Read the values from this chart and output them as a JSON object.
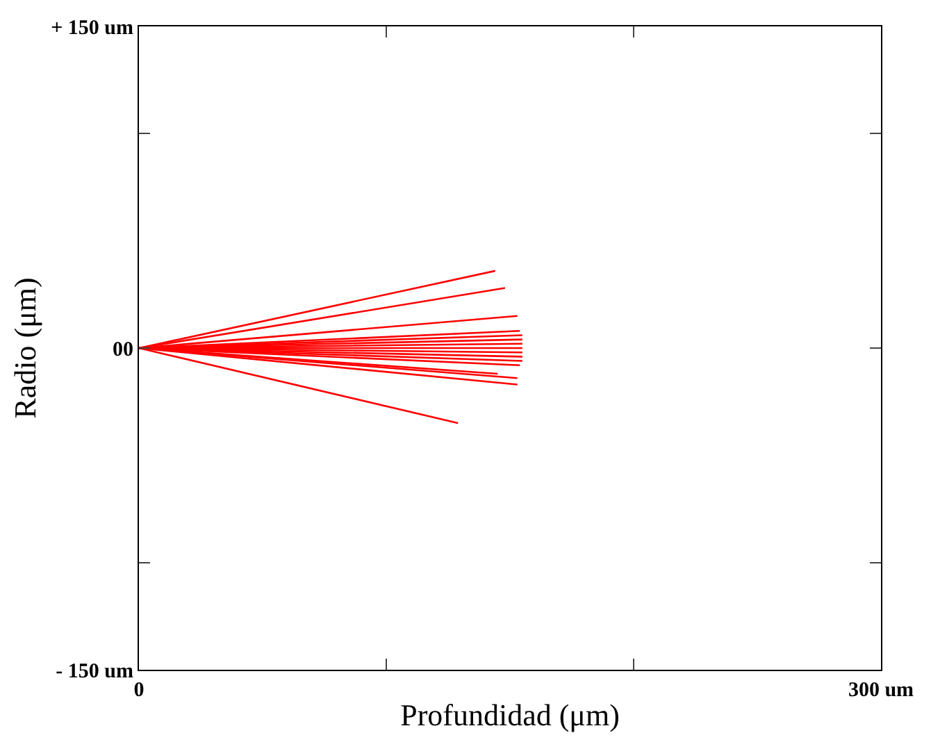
{
  "chart_data": {
    "type": "line",
    "xlabel": "Profundidad (μm)",
    "ylabel": "Radio (μm)",
    "xlim": [
      0,
      300
    ],
    "ylim": [
      -150,
      150
    ],
    "xticks": [
      {
        "value": 0,
        "label": "0"
      },
      {
        "value": 100,
        "label": null
      },
      {
        "value": 200,
        "label": null
      },
      {
        "value": 300,
        "label": "300 um"
      }
    ],
    "yticks": [
      {
        "value": -150,
        "label": "- 150 um"
      },
      {
        "value": -100,
        "label": null
      },
      {
        "value": 0,
        "label": "00"
      },
      {
        "value": 100,
        "label": null
      },
      {
        "value": 150,
        "label": "+ 150 um"
      }
    ],
    "marker": "none",
    "line_style": "solid",
    "series": [
      {
        "color": "#ff0000",
        "x": [
          0,
          144
        ],
        "values": [
          0,
          36
        ]
      },
      {
        "color": "#ff0000",
        "x": [
          0,
          148
        ],
        "values": [
          0,
          28
        ]
      },
      {
        "color": "#ff0000",
        "x": [
          0,
          153
        ],
        "values": [
          0,
          15
        ]
      },
      {
        "color": "#ff0000",
        "x": [
          0,
          154
        ],
        "values": [
          0,
          8
        ]
      },
      {
        "color": "#ff0000",
        "x": [
          0,
          155
        ],
        "values": [
          0,
          6
        ]
      },
      {
        "color": "#ff0000",
        "x": [
          0,
          155
        ],
        "values": [
          0,
          4
        ]
      },
      {
        "color": "#ff0000",
        "x": [
          0,
          155
        ],
        "values": [
          0,
          2
        ]
      },
      {
        "color": "#ff0000",
        "x": [
          0,
          155
        ],
        "values": [
          0,
          0
        ]
      },
      {
        "color": "#ff0000",
        "x": [
          0,
          155
        ],
        "values": [
          0,
          -2
        ]
      },
      {
        "color": "#ff0000",
        "x": [
          0,
          155
        ],
        "values": [
          0,
          -4
        ]
      },
      {
        "color": "#ff0000",
        "x": [
          0,
          155
        ],
        "values": [
          0,
          -6
        ]
      },
      {
        "color": "#ff0000",
        "x": [
          0,
          154
        ],
        "values": [
          0,
          -8
        ]
      },
      {
        "color": "#ff0000",
        "x": [
          0,
          145
        ],
        "values": [
          0,
          -12
        ]
      },
      {
        "color": "#ff0000",
        "x": [
          0,
          153
        ],
        "values": [
          0,
          -14
        ]
      },
      {
        "color": "#ff0000",
        "x": [
          0,
          153
        ],
        "values": [
          0,
          -17
        ]
      },
      {
        "color": "#ff0000",
        "x": [
          0,
          129
        ],
        "values": [
          0,
          -35
        ]
      }
    ]
  }
}
